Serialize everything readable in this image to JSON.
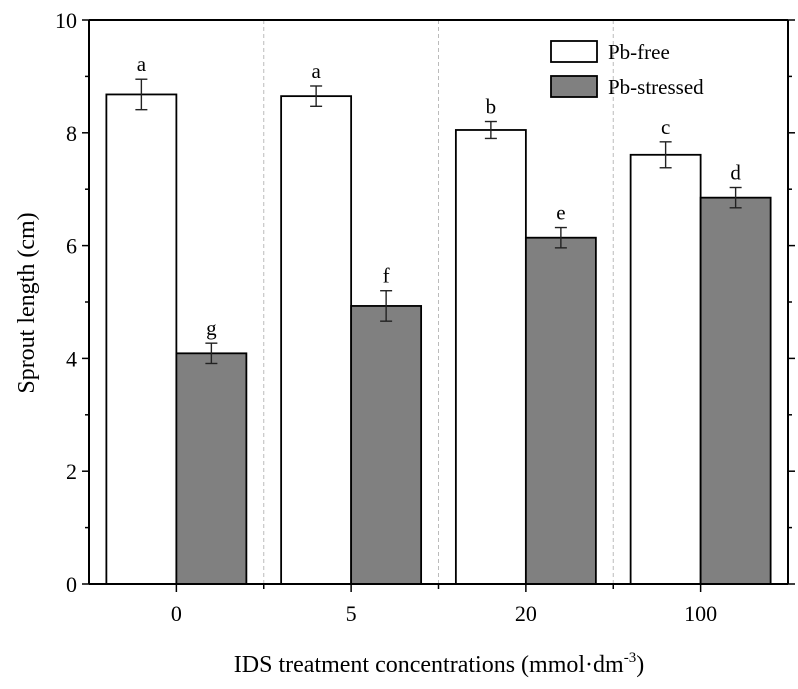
{
  "chart_data": {
    "type": "bar",
    "title": "",
    "xlabel": "IDS treatment concentrations (mmol·dm",
    "xlabel_superscript": "-3",
    "xlabel_suffix": ")",
    "ylabel": "Sprout length (cm)",
    "ylim": [
      0,
      10
    ],
    "yticks": [
      0,
      2,
      4,
      6,
      8,
      10
    ],
    "categories": [
      "0",
      "5",
      "20",
      "100"
    ],
    "series": [
      {
        "name": "Pb-free",
        "color": "#ffffff",
        "values": [
          8.68,
          8.65,
          8.05,
          7.61
        ],
        "errors": [
          0.27,
          0.18,
          0.15,
          0.23
        ],
        "letters": [
          "a",
          "a",
          "b",
          "c"
        ]
      },
      {
        "name": "Pb-stressed",
        "color": "#808080",
        "values": [
          4.09,
          4.93,
          6.14,
          6.85
        ],
        "errors": [
          0.18,
          0.27,
          0.18,
          0.18
        ],
        "letters": [
          "g",
          "f",
          "e",
          "d"
        ]
      }
    ],
    "legend_position": "top-right",
    "grid": false,
    "category_separators": true
  }
}
